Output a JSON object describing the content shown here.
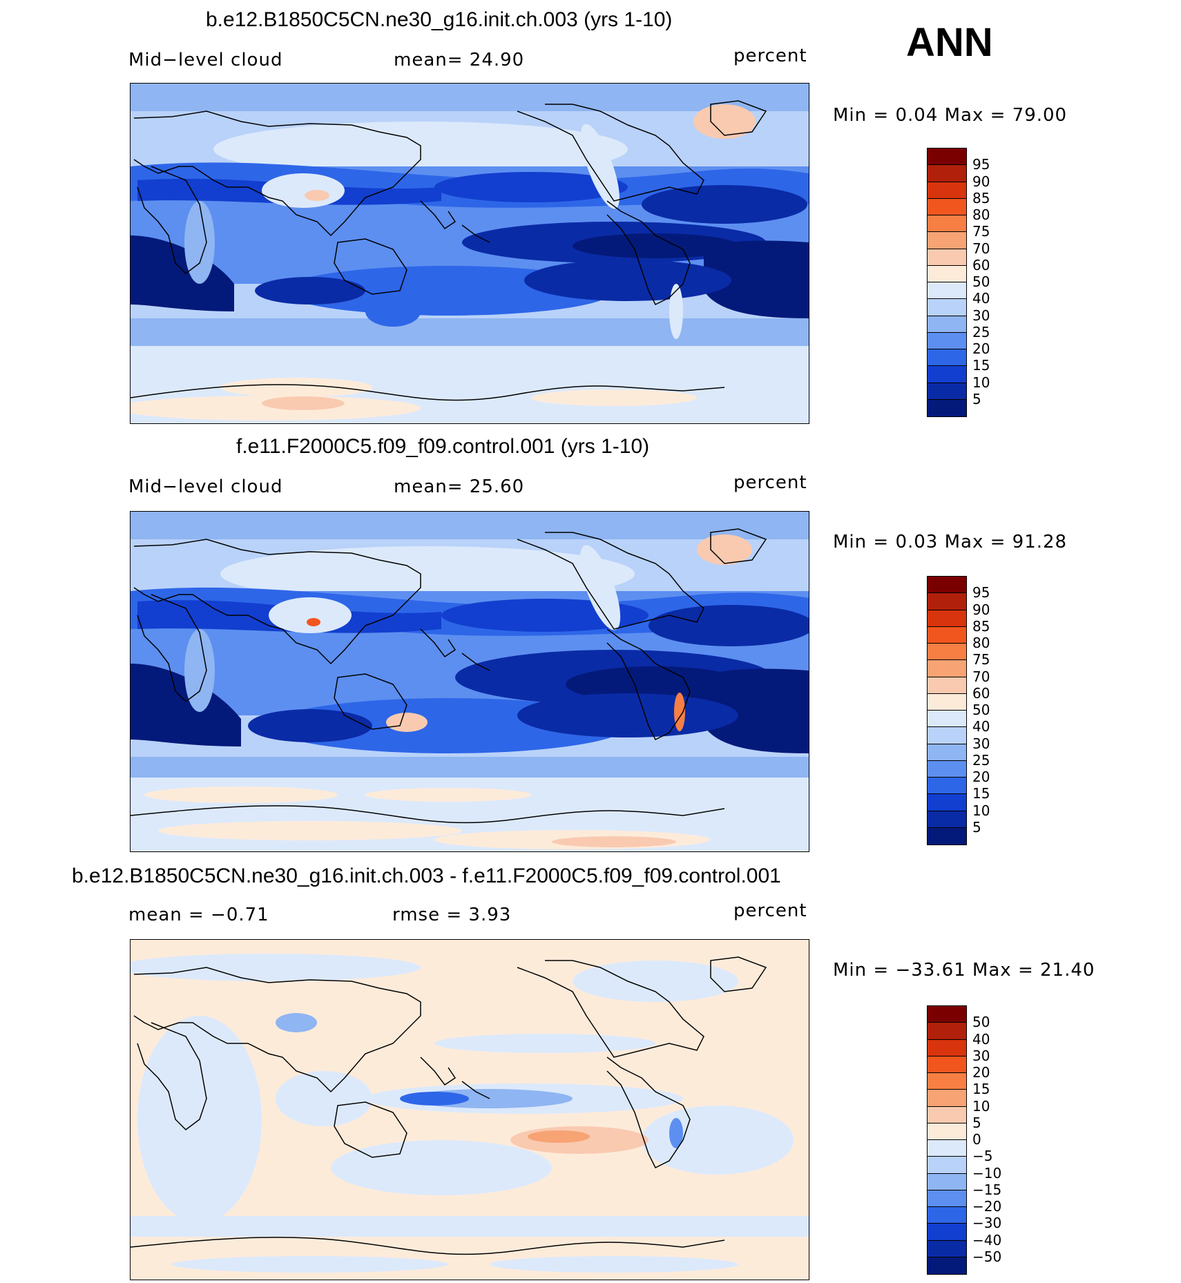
{
  "season": "ANN",
  "panels": [
    {
      "title": "b.e12.B1850C5CN.ne30_g16.init.ch.003 (yrs 1-10)",
      "left_label": "Mid−level cloud",
      "center_label": "mean=   24.90",
      "right_label": "percent",
      "minmax": "Min  =    0.04  Max  =   79.00",
      "colorbar_labels": [
        "95",
        "90",
        "85",
        "80",
        "75",
        "70",
        "60",
        "50",
        "40",
        "30",
        "25",
        "20",
        "15",
        "10",
        "5"
      ],
      "colorbar_colors": [
        "#7a0000",
        "#b0200a",
        "#d8340e",
        "#f2561f",
        "#f77f44",
        "#f7a374",
        "#f9cab0",
        "#fdebda",
        "#dce9fb",
        "#b9d2f9",
        "#8fb5f2",
        "#5d8ff0",
        "#2e66e8",
        "#123fcf",
        "#0a2ba6",
        "#041a7a"
      ]
    },
    {
      "title": "f.e11.F2000C5.f09_f09.control.001 (yrs 1-10)",
      "left_label": "Mid−level cloud",
      "center_label": "mean=   25.60",
      "right_label": "percent",
      "minmax": "Min  =    0.03  Max  =   91.28",
      "colorbar_labels": [
        "95",
        "90",
        "85",
        "80",
        "75",
        "70",
        "60",
        "50",
        "40",
        "30",
        "25",
        "20",
        "15",
        "10",
        "5"
      ],
      "colorbar_colors": [
        "#7a0000",
        "#b0200a",
        "#d8340e",
        "#f2561f",
        "#f77f44",
        "#f7a374",
        "#f9cab0",
        "#fdebda",
        "#dce9fb",
        "#b9d2f9",
        "#8fb5f2",
        "#5d8ff0",
        "#2e66e8",
        "#123fcf",
        "#0a2ba6",
        "#041a7a"
      ]
    },
    {
      "title": "b.e12.B1850C5CN.ne30_g16.init.ch.003 - f.e11.F2000C5.f09_f09.control.001",
      "left_label": "mean  =   −0.71",
      "center_label": "rmse  =     3.93",
      "right_label": "percent",
      "minmax": "Min  = −33.61  Max  =   21.40",
      "colorbar_labels": [
        "50",
        "40",
        "30",
        "20",
        "15",
        "10",
        "5",
        "0",
        "−5",
        "−10",
        "−15",
        "−20",
        "−30",
        "−40",
        "−50"
      ],
      "colorbar_colors": [
        "#7a0000",
        "#b0200a",
        "#d8340e",
        "#f2561f",
        "#f77f44",
        "#f7a374",
        "#f9cab0",
        "#fdebda",
        "#dce9fb",
        "#b9d2f9",
        "#8fb5f2",
        "#5d8ff0",
        "#2e66e8",
        "#123fcf",
        "#0a2ba6",
        "#041a7a"
      ]
    }
  ]
}
